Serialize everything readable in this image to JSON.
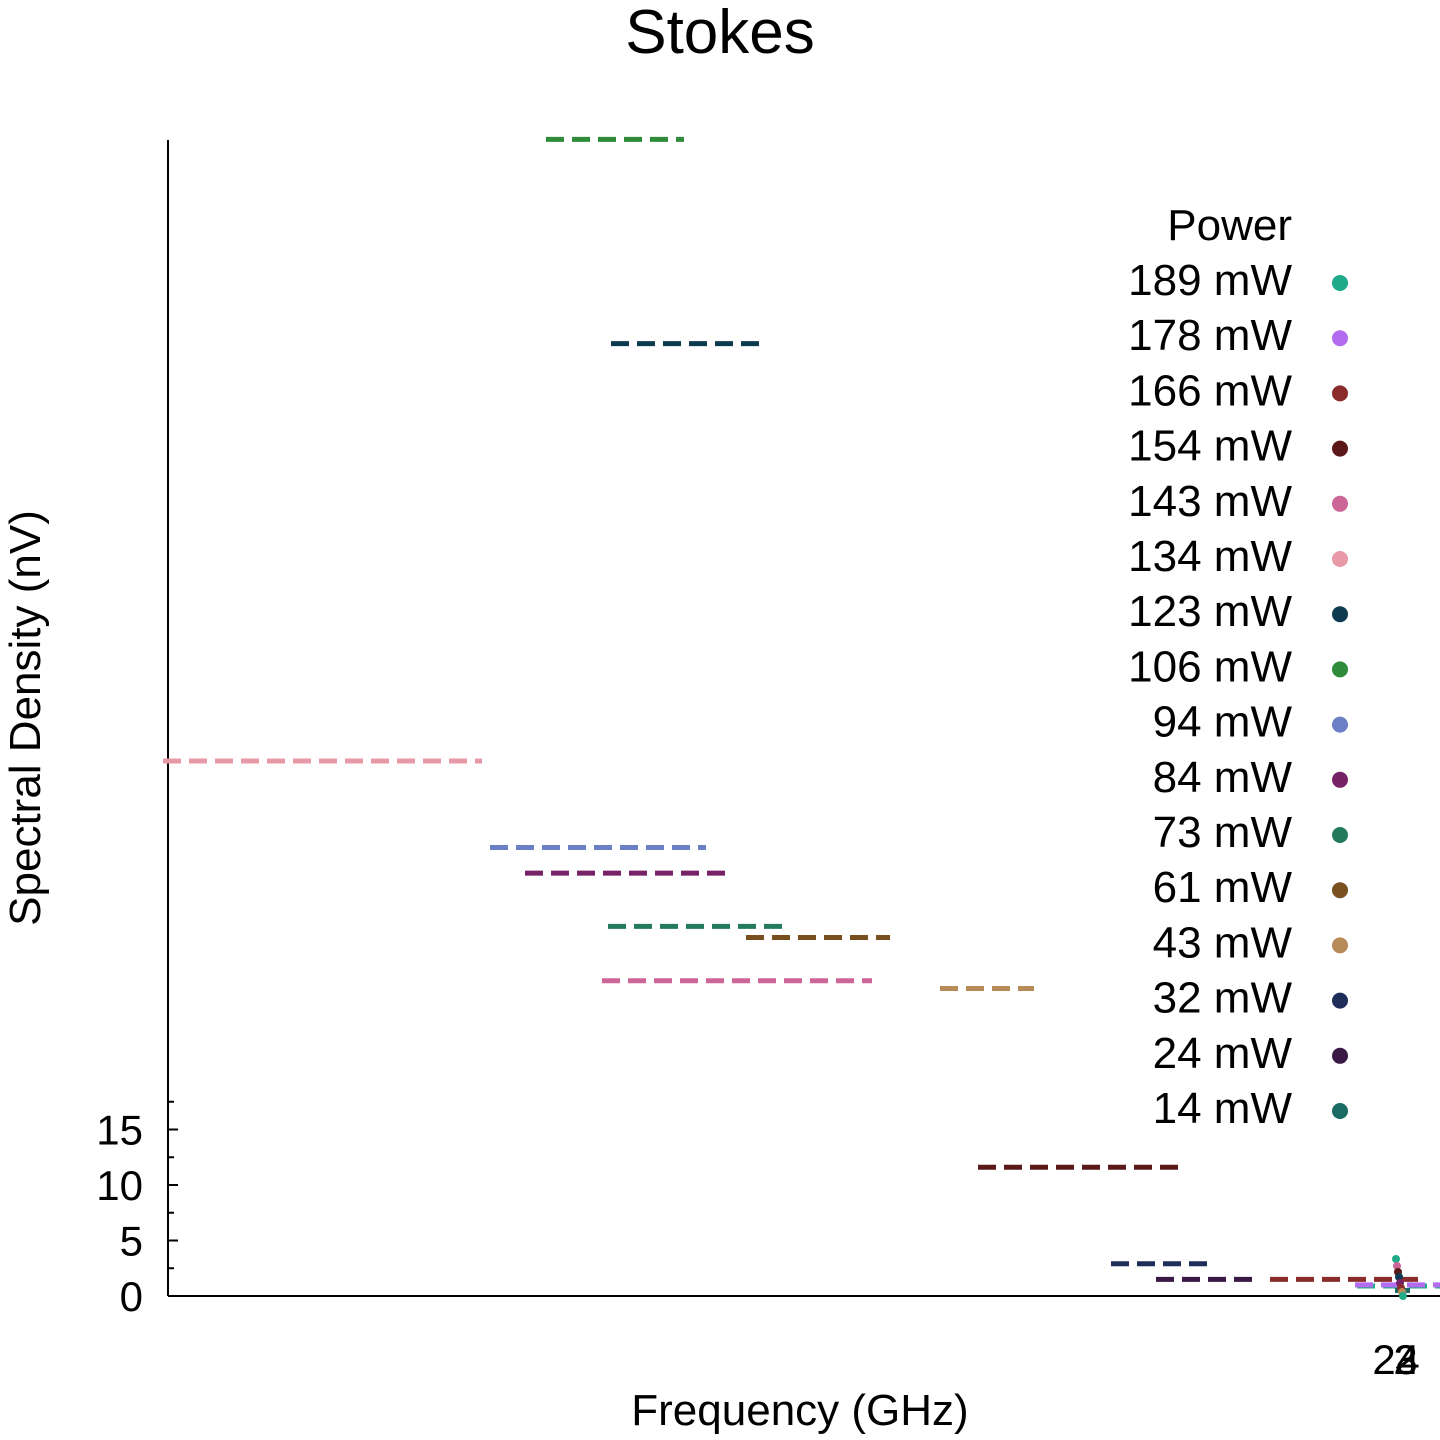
{
  "chart_data": {
    "type": "line",
    "title": "Stokes",
    "xlabel": "Frequency (GHz)",
    "ylabel": "Spectral Density (nV)",
    "y_ticks": [
      "0",
      "5",
      "10",
      "15"
    ],
    "x_tick_labels": [
      "2",
      "2",
      "3",
      "4"
    ],
    "legend": {
      "title": "Power",
      "placement": "right"
    },
    "series": [
      {
        "name": "189 mW",
        "color": "#1faa8a",
        "dash_x": [
          1357,
          1440
        ],
        "dash_y": 0.9
      },
      {
        "name": "178 mW",
        "color": "#b36bf0",
        "dash_x": [
          1355,
          1440
        ],
        "dash_y": 1.0
      },
      {
        "name": "166 mW",
        "color": "#8b2c2c",
        "dash_x": [
          1270,
          1425
        ],
        "dash_y": 1.5
      },
      {
        "name": "154 mW",
        "color": "#5c1818",
        "dash_x": [
          978,
          1185
        ],
        "dash_y": 11.6
      },
      {
        "name": "143 mW",
        "color": "#cc6699",
        "dash_x": [
          602,
          872
        ],
        "dash_y": 28.4
      },
      {
        "name": "134 mW",
        "color": "#e899a8",
        "dash_x": [
          163,
          482
        ],
        "dash_y": 48.2
      },
      {
        "name": "123 mW",
        "color": "#0e3a4f",
        "dash_x": [
          611,
          762
        ],
        "dash_y": 85.8
      },
      {
        "name": "106 mW",
        "color": "#2e8b3a",
        "dash_x": [
          546,
          684
        ],
        "dash_y": 104.2
      },
      {
        "name": "94 mW",
        "color": "#6b7fc4",
        "dash_x": [
          490,
          706
        ],
        "dash_y": 40.4
      },
      {
        "name": "84 mW",
        "color": "#772266",
        "dash_x": [
          525,
          729
        ],
        "dash_y": 38.1
      },
      {
        "name": "73 mW",
        "color": "#247a5c",
        "dash_x": [
          608,
          789
        ],
        "dash_y": 33.3
      },
      {
        "name": "61 mW",
        "color": "#7a5020",
        "dash_x": [
          746,
          890
        ],
        "dash_y": 32.3
      },
      {
        "name": "43 mW",
        "color": "#b88a58",
        "dash_x": [
          940,
          1034
        ],
        "dash_y": 27.7
      },
      {
        "name": "32 mW",
        "color": "#1e2e58",
        "dash_x": [
          1111,
          1212
        ],
        "dash_y": 2.9
      },
      {
        "name": "24 mW",
        "color": "#3a1844",
        "dash_x": [
          1156,
          1253
        ],
        "dash_y": 1.5
      },
      {
        "name": "14 mW",
        "color": "#1a6b64",
        "dash_x": [
          1395,
          1410
        ],
        "dash_y": 0.5
      }
    ]
  }
}
